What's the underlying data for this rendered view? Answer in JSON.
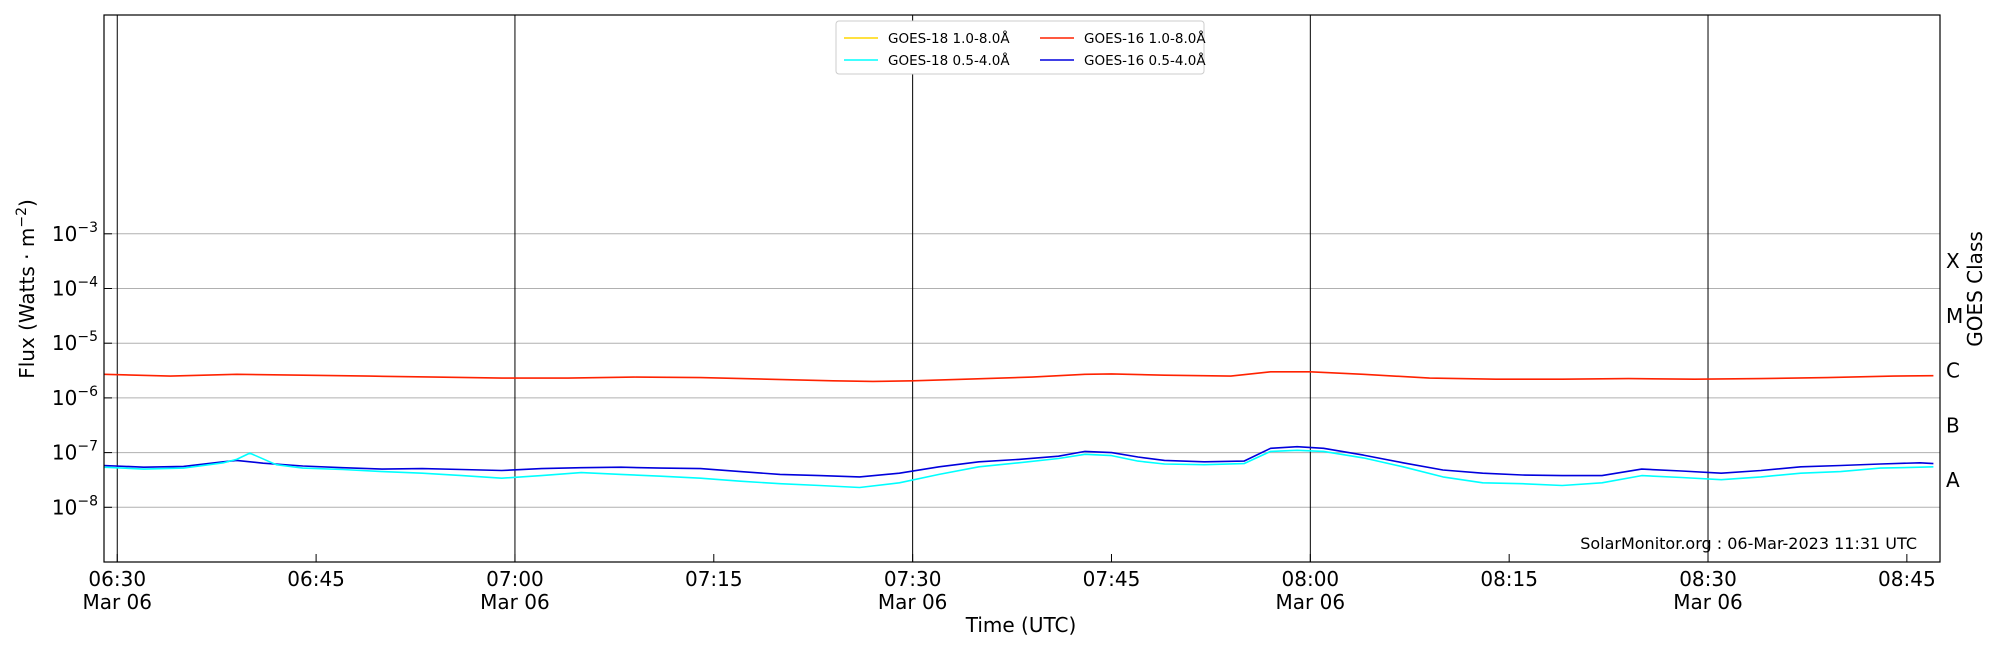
{
  "chart_data": {
    "type": "line",
    "xlabel": "Time (UTC)",
    "ylabel": "Flux (Watts · m⁻²)",
    "ylabel_base": "Flux (Watts · m",
    "ylabel_exp": "−2",
    "ylabel_tail": ")",
    "right_label": "GOES Class",
    "watermark": "SolarMonitor.org : 06-Mar-2023 11:31 UTC",
    "x_range_minutes": [
      0,
      138.5
    ],
    "x_time_origin": "06:29",
    "y_range_log10": [
      -9,
      1
    ],
    "y_scale": "log",
    "grid": "horizontal",
    "x_ticks": [
      {
        "minutes": 1,
        "label": "06:30",
        "sub": "Mar 06",
        "vline": true
      },
      {
        "minutes": 16,
        "label": "06:45",
        "sub": "",
        "vline": false
      },
      {
        "minutes": 31,
        "label": "07:00",
        "sub": "Mar 06",
        "vline": true
      },
      {
        "minutes": 46,
        "label": "07:15",
        "sub": "",
        "vline": false
      },
      {
        "minutes": 61,
        "label": "07:30",
        "sub": "Mar 06",
        "vline": true
      },
      {
        "minutes": 76,
        "label": "07:45",
        "sub": "",
        "vline": false
      },
      {
        "minutes": 91,
        "label": "08:00",
        "sub": "Mar 06",
        "vline": true
      },
      {
        "minutes": 106,
        "label": "08:15",
        "sub": "",
        "vline": false
      },
      {
        "minutes": 121,
        "label": "08:30",
        "sub": "Mar 06",
        "vline": true
      },
      {
        "minutes": 136,
        "label": "08:45",
        "sub": "",
        "vline": false
      }
    ],
    "y_ticks": [
      {
        "exp": -8,
        "base": "10",
        "sup": "−8"
      },
      {
        "exp": -7,
        "base": "10",
        "sup": "−7"
      },
      {
        "exp": -6,
        "base": "10",
        "sup": "−6"
      },
      {
        "exp": -5,
        "base": "10",
        "sup": "−5"
      },
      {
        "exp": -4,
        "base": "10",
        "sup": "−4"
      },
      {
        "exp": -3,
        "base": "10",
        "sup": "−3"
      }
    ],
    "class_labels": [
      {
        "label": "A",
        "exp": -7.5
      },
      {
        "label": "B",
        "exp": -6.5
      },
      {
        "label": "C",
        "exp": -5.5
      },
      {
        "label": "M",
        "exp": -4.5
      },
      {
        "label": "X",
        "exp": -3.5
      }
    ],
    "legend": {
      "placement": "top-center",
      "columns": [
        [
          {
            "name": "GOES-18 1.0-8.0Å",
            "color": "#ffd700"
          },
          {
            "name": "GOES-18 0.5-4.0Å",
            "color": "#00ffff"
          }
        ],
        [
          {
            "name": "GOES-16 1.0-8.0Å",
            "color": "#ff2200"
          },
          {
            "name": "GOES-16 0.5-4.0Å",
            "color": "#0000dd"
          }
        ]
      ]
    },
    "series": [
      {
        "name": "GOES-16 1.0-8.0Å",
        "color": "#ff2200",
        "x": [
          0,
          5,
          10,
          15,
          20,
          25,
          30,
          35,
          40,
          45,
          50,
          55,
          58,
          61,
          65,
          70,
          74,
          76,
          80,
          85,
          88,
          91,
          95,
          100,
          105,
          110,
          115,
          120,
          125,
          130,
          135,
          138
        ],
        "y": [
          2.7e-06,
          2.5e-06,
          2.7e-06,
          2.6e-06,
          2.5e-06,
          2.4e-06,
          2.3e-06,
          2.3e-06,
          2.4e-06,
          2.35e-06,
          2.2e-06,
          2.05e-06,
          2e-06,
          2.05e-06,
          2.2e-06,
          2.4e-06,
          2.7e-06,
          2.75e-06,
          2.6e-06,
          2.5e-06,
          3e-06,
          3e-06,
          2.7e-06,
          2.3e-06,
          2.2e-06,
          2.2e-06,
          2.25e-06,
          2.2e-06,
          2.25e-06,
          2.35e-06,
          2.5e-06,
          2.55e-06
        ]
      },
      {
        "name": "GOES-16 0.5-4.0Å",
        "color": "#0000dd",
        "x": [
          0,
          3,
          6,
          9,
          10,
          12,
          15,
          18,
          21,
          24,
          27,
          30,
          33,
          36,
          39,
          42,
          45,
          48,
          51,
          54,
          57,
          60,
          63,
          66,
          69,
          72,
          74,
          76,
          78,
          80,
          83,
          86,
          88,
          90,
          92,
          95,
          98,
          101,
          104,
          107,
          110,
          113,
          116,
          119,
          122,
          125,
          128,
          131,
          134,
          137,
          138
        ],
        "y": [
          5.8e-08,
          5.4e-08,
          5.6e-08,
          6.8e-08,
          7.2e-08,
          6.4e-08,
          5.7e-08,
          5.3e-08,
          5e-08,
          5.1e-08,
          4.9e-08,
          4.7e-08,
          5.1e-08,
          5.3e-08,
          5.4e-08,
          5.2e-08,
          5.1e-08,
          4.5e-08,
          4e-08,
          3.8e-08,
          3.6e-08,
          4.2e-08,
          5.5e-08,
          6.8e-08,
          7.5e-08,
          8.6e-08,
          1.05e-07,
          1e-07,
          8.3e-08,
          7.2e-08,
          6.8e-08,
          7e-08,
          1.2e-07,
          1.28e-07,
          1.2e-07,
          9e-08,
          6.5e-08,
          4.8e-08,
          4.2e-08,
          3.9e-08,
          3.8e-08,
          3.8e-08,
          5e-08,
          4.6e-08,
          4.2e-08,
          4.7e-08,
          5.5e-08,
          5.8e-08,
          6.2e-08,
          6.5e-08,
          6.3e-08
        ]
      },
      {
        "name": "GOES-18 0.5-4.0Å",
        "color": "#00ffff",
        "x": [
          0,
          3,
          6,
          9,
          10,
          11,
          13,
          15,
          18,
          21,
          24,
          27,
          30,
          33,
          36,
          39,
          42,
          45,
          48,
          51,
          54,
          57,
          60,
          63,
          66,
          69,
          72,
          74,
          76,
          78,
          80,
          83,
          86,
          88,
          90,
          92,
          95,
          98,
          101,
          104,
          107,
          110,
          113,
          116,
          119,
          122,
          125,
          128,
          131,
          134,
          137,
          138
        ],
        "y": [
          5.4e-08,
          5e-08,
          5.2e-08,
          6.5e-08,
          7.5e-08,
          9.8e-08,
          6e-08,
          5.2e-08,
          4.9e-08,
          4.5e-08,
          4.2e-08,
          3.8e-08,
          3.4e-08,
          3.8e-08,
          4.3e-08,
          4e-08,
          3.7e-08,
          3.4e-08,
          3e-08,
          2.7e-08,
          2.5e-08,
          2.3e-08,
          2.8e-08,
          4e-08,
          5.5e-08,
          6.5e-08,
          7.8e-08,
          9.3e-08,
          8.8e-08,
          7e-08,
          6.2e-08,
          6e-08,
          6.3e-08,
          1.05e-07,
          1.1e-07,
          1.05e-07,
          8e-08,
          5.5e-08,
          3.6e-08,
          2.8e-08,
          2.7e-08,
          2.5e-08,
          2.8e-08,
          3.8e-08,
          3.5e-08,
          3.2e-08,
          3.6e-08,
          4.2e-08,
          4.5e-08,
          5.2e-08,
          5.4e-08,
          5.5e-08
        ]
      }
    ]
  }
}
